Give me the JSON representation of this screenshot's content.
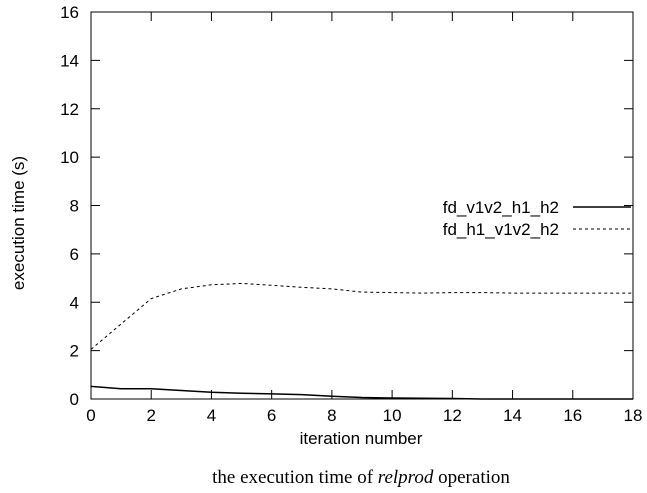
{
  "chart_data": {
    "type": "line",
    "title": "",
    "xlabel": "iteration number",
    "ylabel": "execution time (s)",
    "xlim": [
      0,
      18
    ],
    "ylim": [
      0,
      16
    ],
    "xticks": [
      0,
      2,
      4,
      6,
      8,
      10,
      12,
      14,
      16,
      18
    ],
    "yticks": [
      0,
      2,
      4,
      6,
      8,
      10,
      12,
      14,
      16
    ],
    "grid": false,
    "legend_position": "right",
    "series": [
      {
        "name": "fd_v1v2_h1_h2",
        "style": "solid",
        "x": [
          0,
          1,
          2,
          3,
          4,
          5,
          6,
          7,
          8,
          9,
          10,
          11,
          12,
          13,
          14,
          15,
          16,
          17,
          18
        ],
        "y": [
          0.52,
          0.42,
          0.42,
          0.35,
          0.28,
          0.24,
          0.21,
          0.18,
          0.11,
          0.06,
          0.04,
          0.03,
          0.02,
          0.0,
          0.0,
          0.0,
          0.0,
          0.0,
          0.0
        ]
      },
      {
        "name": "fd_h1_v1v2_h2",
        "style": "dashed",
        "x": [
          0,
          1,
          2,
          3,
          4,
          5,
          6,
          7,
          8,
          9,
          10,
          11,
          12,
          13,
          14,
          15,
          16,
          17,
          18
        ],
        "y": [
          2.05,
          3.1,
          4.15,
          4.55,
          4.72,
          4.78,
          4.7,
          4.62,
          4.55,
          4.42,
          4.4,
          4.38,
          4.4,
          4.4,
          4.38,
          4.38,
          4.38,
          4.38,
          4.38
        ]
      }
    ],
    "caption": {
      "prefix": "the execution time of ",
      "emphasis": "relprod",
      "suffix": " operation"
    },
    "colors": {
      "line": "#000000",
      "frame": "#000000",
      "background": "#ffffff"
    }
  }
}
